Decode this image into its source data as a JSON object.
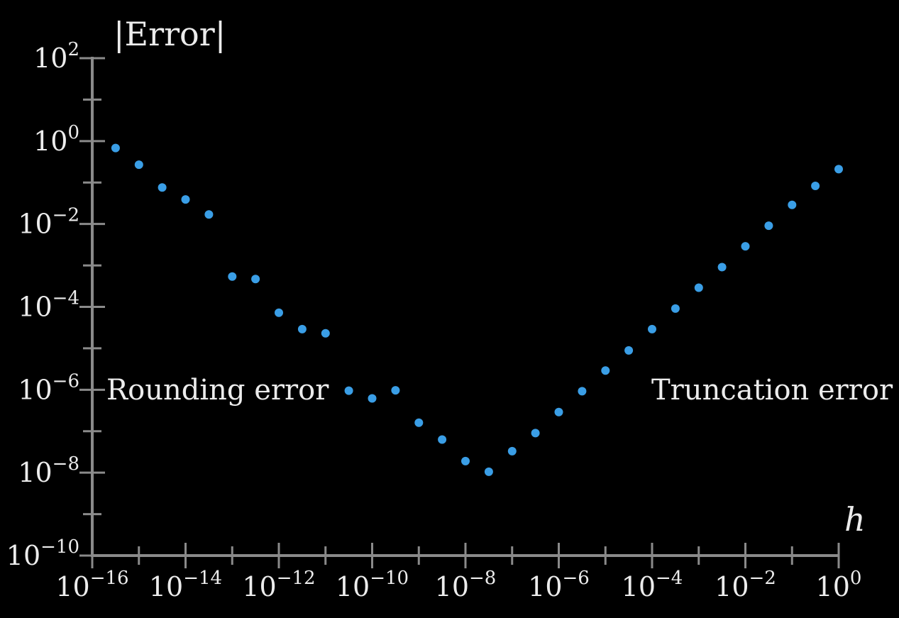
{
  "chart_data": {
    "type": "scatter",
    "xlabel": "h",
    "ylabel": "|Error|",
    "x_scale": "log",
    "y_scale": "log",
    "xlim": [
      1e-16,
      1
    ],
    "ylim": [
      1e-10,
      100
    ],
    "x_tick_base": "10",
    "x_tick_exponents": [
      "−16",
      "−14",
      "−12",
      "−10",
      "−8",
      "−6",
      "−4",
      "−2",
      "0"
    ],
    "y_tick_base": "10",
    "y_tick_exponents": [
      "2",
      "0",
      "−2",
      "−4",
      "−6",
      "−8",
      "−10"
    ],
    "annotations": {
      "left": "Rounding error",
      "right": "Truncation error"
    },
    "grid": false,
    "color": "#3a9ee6",
    "points": [
      {
        "x": 3.16e-16,
        "y": 0.68
      },
      {
        "x": 1e-15,
        "y": 0.27
      },
      {
        "x": 3.16e-15,
        "y": 0.076
      },
      {
        "x": 1e-14,
        "y": 0.039
      },
      {
        "x": 3.16e-14,
        "y": 0.017
      },
      {
        "x": 1e-13,
        "y": 0.00054
      },
      {
        "x": 3.16e-13,
        "y": 0.00047
      },
      {
        "x": 1e-12,
        "y": 7.2e-05
      },
      {
        "x": 3.16e-12,
        "y": 2.9e-05
      },
      {
        "x": 1e-11,
        "y": 2.3e-05
      },
      {
        "x": 3.16e-11,
        "y": 9.5e-07
      },
      {
        "x": 1e-10,
        "y": 6.2e-07
      },
      {
        "x": 3.16e-10,
        "y": 9.7e-07
      },
      {
        "x": 1e-09,
        "y": 1.6e-07
      },
      {
        "x": 3.16e-09,
        "y": 6.3e-08
      },
      {
        "x": 1e-08,
        "y": 1.9e-08
      },
      {
        "x": 3.16e-08,
        "y": 1.05e-08
      },
      {
        "x": 1e-07,
        "y": 3.3e-08
      },
      {
        "x": 3.16e-07,
        "y": 9e-08
      },
      {
        "x": 1e-06,
        "y": 2.9e-07
      },
      {
        "x": 3.16e-06,
        "y": 9.2e-07
      },
      {
        "x": 1e-05,
        "y": 2.9e-06
      },
      {
        "x": 3.16e-05,
        "y": 8.9e-06
      },
      {
        "x": 0.0001,
        "y": 2.9e-05
      },
      {
        "x": 0.000316,
        "y": 9.1e-05
      },
      {
        "x": 0.001,
        "y": 0.00029
      },
      {
        "x": 0.00316,
        "y": 0.00091
      },
      {
        "x": 0.01,
        "y": 0.0029
      },
      {
        "x": 0.0316,
        "y": 0.0091
      },
      {
        "x": 0.1,
        "y": 0.029
      },
      {
        "x": 0.316,
        "y": 0.083
      },
      {
        "x": 1,
        "y": 0.21
      }
    ]
  }
}
